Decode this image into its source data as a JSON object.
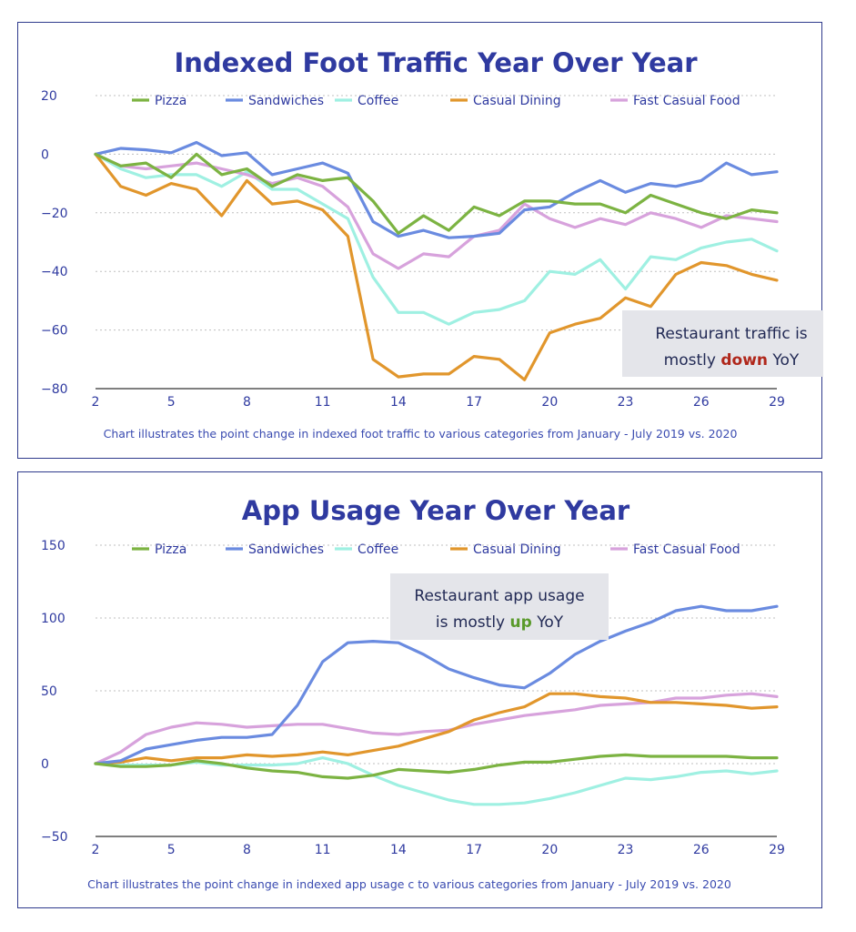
{
  "legend_items": [
    {
      "name": "Pizza",
      "color": "#7cb342"
    },
    {
      "name": "Sandwiches",
      "color": "#6a8be0"
    },
    {
      "name": "Coffee",
      "color": "#9ff0e2"
    },
    {
      "name": "Casual Dining",
      "color": "#e1962c"
    },
    {
      "name": "Fast Casual Food",
      "color": "#d7a2dc"
    }
  ],
  "chart_data": [
    {
      "type": "line",
      "title": "Indexed Foot Traffic Year Over Year",
      "caption": "Chart illustrates the point change in indexed foot traffic to various categories from January - July 2019 vs. 2020",
      "xlabel": "",
      "ylabel": "",
      "x": [
        2,
        3,
        4,
        5,
        6,
        7,
        8,
        9,
        10,
        11,
        12,
        13,
        14,
        15,
        16,
        17,
        18,
        19,
        20,
        21,
        22,
        23,
        24,
        25,
        26,
        27,
        28,
        29
      ],
      "xticks": [
        "2",
        "5",
        "8",
        "11",
        "14",
        "17",
        "20",
        "23",
        "26",
        "29"
      ],
      "ylim": [
        -80,
        20
      ],
      "yticks": [
        "20",
        "0",
        "−20",
        "−40",
        "−60",
        "−80"
      ],
      "series": [
        {
          "name": "Pizza",
          "color": "#7cb342",
          "values": [
            0,
            -4,
            -3,
            -8,
            0,
            -7,
            -5,
            -11,
            -7,
            -9,
            -8,
            -16,
            -27,
            -21,
            -26,
            -18,
            -21,
            -16,
            -16,
            -17,
            -17,
            -20,
            -14,
            -17,
            -20,
            -22,
            -19,
            -20
          ]
        },
        {
          "name": "Sandwiches",
          "color": "#6a8be0",
          "values": [
            0,
            2,
            1.5,
            0.5,
            4,
            -0.5,
            0.5,
            -7,
            -5,
            -3,
            -6.5,
            -23,
            -28,
            -26,
            -28.5,
            -28,
            -27,
            -19,
            -18,
            -13,
            -9,
            -13,
            -10,
            -11,
            -9,
            -3,
            -7,
            -6
          ]
        },
        {
          "name": "Coffee",
          "color": "#9ff0e2",
          "values": [
            0,
            -5,
            -8,
            -7,
            -7,
            -11,
            -6,
            -12,
            -12,
            -17,
            -22,
            -42,
            -54,
            -54,
            -58,
            -54,
            -53,
            -50,
            -40,
            -41,
            -36,
            -46,
            -35,
            -36,
            -32,
            -30,
            -29,
            -33
          ]
        },
        {
          "name": "Casual Dining",
          "color": "#e1962c",
          "values": [
            0,
            -11,
            -14,
            -10,
            -12,
            -21,
            -9,
            -17,
            -16,
            -19,
            -28,
            -70,
            -76,
            -75,
            -75,
            -69,
            -70,
            -77,
            -61,
            -58,
            -56,
            -49,
            -52,
            -41,
            -37,
            -38,
            -41,
            -43
          ]
        },
        {
          "name": "Fast Casual Food",
          "color": "#d7a2dc",
          "values": [
            0,
            -4,
            -5,
            -4,
            -3,
            -5,
            -7,
            -10,
            -8,
            -11,
            -18,
            -34,
            -39,
            -34,
            -35,
            -28,
            -26,
            -17,
            -22,
            -25,
            -22,
            -24,
            -20,
            -22,
            -25,
            -21,
            -22,
            -23
          ]
        }
      ],
      "annotation": {
        "line1": "Restaurant traffic is",
        "line2_pre": "mostly ",
        "line2_emph": "down",
        "line2_post": " YoY",
        "emph_color": "#b0271b"
      }
    },
    {
      "type": "line",
      "title": "App Usage Year Over Year",
      "caption": "Chart illustrates the point change in indexed app usage c to various categories from January - July 2019 vs. 2020",
      "xlabel": "",
      "ylabel": "",
      "x": [
        2,
        3,
        4,
        5,
        6,
        7,
        8,
        9,
        10,
        11,
        12,
        13,
        14,
        15,
        16,
        17,
        18,
        19,
        20,
        21,
        22,
        23,
        24,
        25,
        26,
        27,
        28,
        29
      ],
      "xticks": [
        "2",
        "5",
        "8",
        "11",
        "14",
        "17",
        "20",
        "23",
        "26",
        "29"
      ],
      "ylim": [
        -50,
        150
      ],
      "yticks": [
        "150",
        "100",
        "50",
        "0",
        "−50"
      ],
      "series": [
        {
          "name": "Pizza",
          "color": "#7cb342",
          "values": [
            0,
            -2,
            -2,
            -1,
            2,
            0,
            -3,
            -5,
            -6,
            -9,
            -10,
            -8,
            -4,
            -5,
            -6,
            -4,
            -1,
            1,
            1,
            3,
            5,
            6,
            5,
            5,
            5,
            5,
            4,
            4
          ]
        },
        {
          "name": "Sandwiches",
          "color": "#6a8be0",
          "values": [
            0,
            2,
            10,
            13,
            16,
            18,
            18,
            20,
            40,
            70,
            83,
            84,
            83,
            75,
            65,
            59,
            54,
            52,
            62,
            75,
            84,
            91,
            97,
            105,
            108,
            105,
            105,
            108
          ]
        },
        {
          "name": "Coffee",
          "color": "#9ff0e2",
          "values": [
            0,
            -1,
            -1,
            -1,
            1,
            -1,
            -1,
            -1,
            0,
            4,
            0,
            -8,
            -15,
            -20,
            -25,
            -28,
            -28,
            -27,
            -24,
            -20,
            -15,
            -10,
            -11,
            -9,
            -6,
            -5,
            -7,
            -5
          ]
        },
        {
          "name": "Casual Dining",
          "color": "#e1962c",
          "values": [
            0,
            1,
            4,
            2,
            4,
            4,
            6,
            5,
            6,
            8,
            6,
            9,
            12,
            17,
            22,
            30,
            35,
            39,
            48,
            48,
            46,
            45,
            42,
            42,
            41,
            40,
            38,
            39
          ]
        },
        {
          "name": "Fast Casual Food",
          "color": "#d7a2dc",
          "values": [
            0,
            8,
            20,
            25,
            28,
            27,
            25,
            26,
            27,
            27,
            24,
            21,
            20,
            22,
            23,
            27,
            30,
            33,
            35,
            37,
            40,
            41,
            42,
            45,
            45,
            47,
            48,
            46
          ]
        }
      ],
      "annotation": {
        "line1": "Restaurant app usage",
        "line2_pre": "is mostly ",
        "line2_emph": "up",
        "line2_post": " YoY",
        "emph_color": "#5a9a2b"
      }
    }
  ]
}
